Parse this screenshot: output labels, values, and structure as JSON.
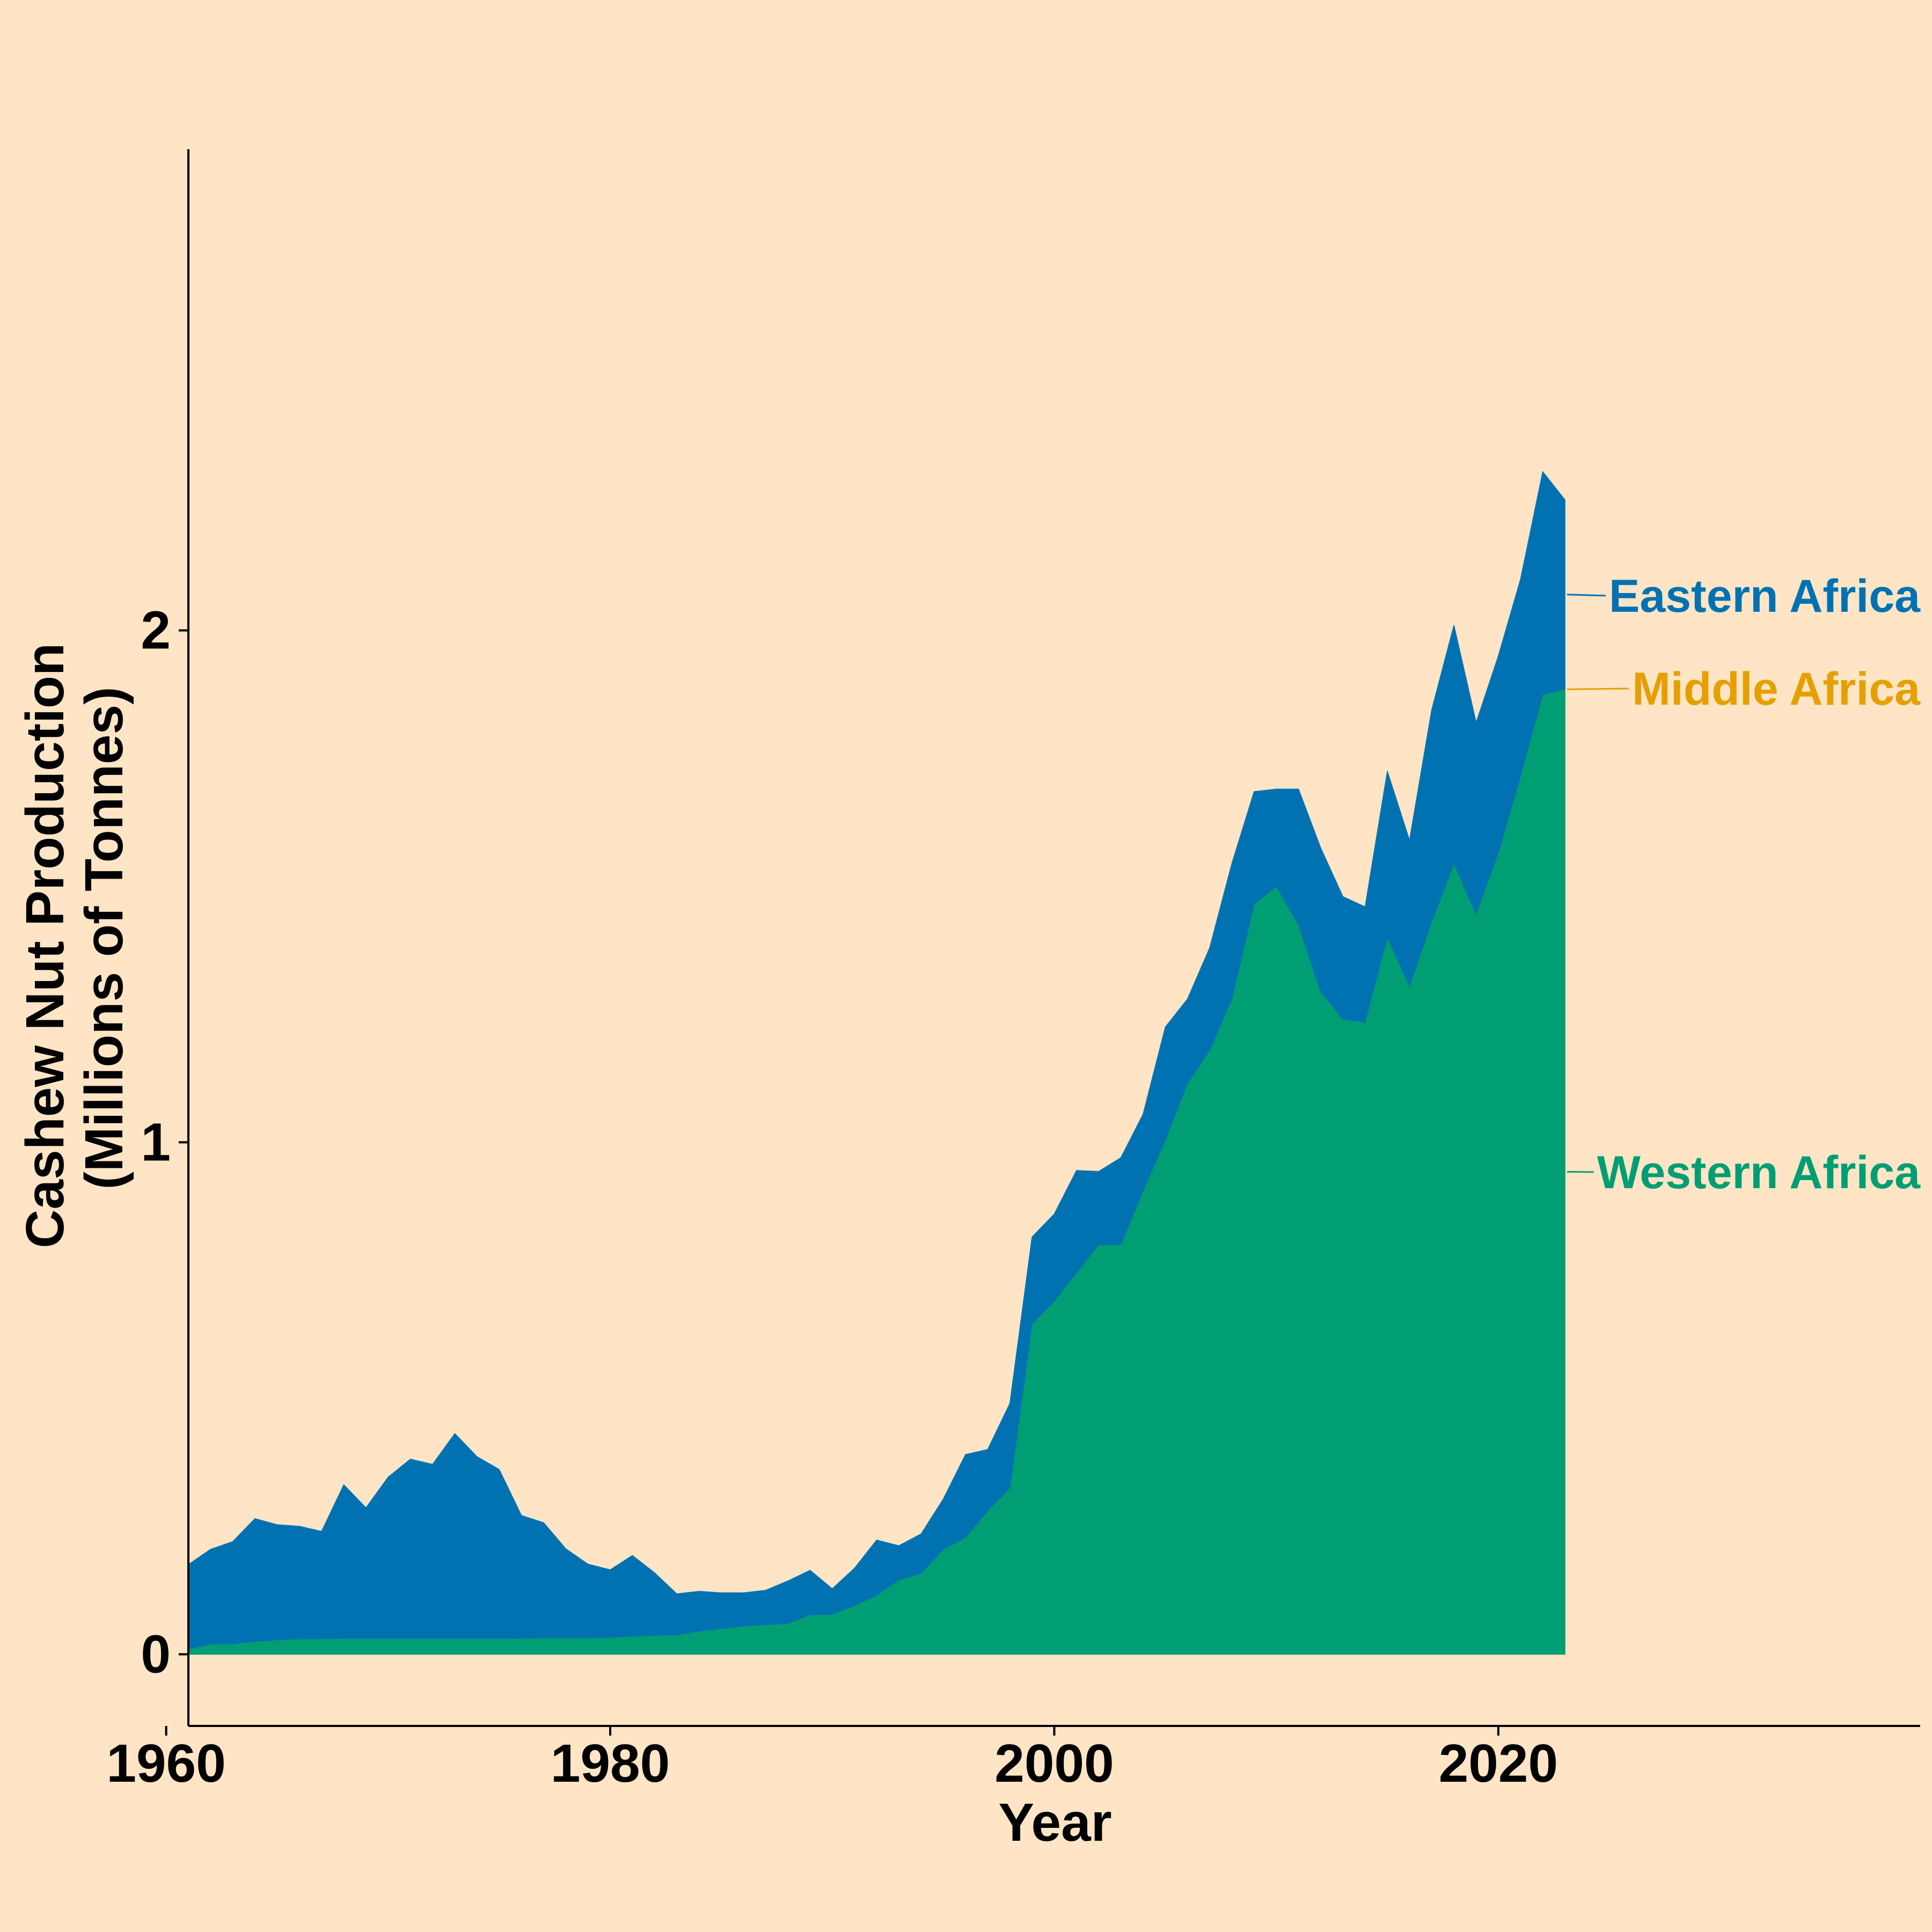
{
  "chart_data": {
    "type": "area",
    "stacked": true,
    "title": "",
    "xlabel": "Year",
    "ylabel_lines": [
      "Cashew Nut Production",
      "(Millions of Tonnes)"
    ],
    "xlim": [
      1961,
      2039
    ],
    "ylim": [
      -0.14,
      2.94
    ],
    "x_ticks": [
      {
        "value": 1960,
        "label": "1960"
      },
      {
        "value": 1980,
        "label": "1980"
      },
      {
        "value": 2000,
        "label": "2000"
      },
      {
        "value": 2020,
        "label": "2020"
      }
    ],
    "y_ticks": [
      {
        "value": 0,
        "label": "0"
      },
      {
        "value": 1,
        "label": "1"
      },
      {
        "value": 2,
        "label": "2"
      }
    ],
    "grid": false,
    "legend": "direct labels at right end of series",
    "x": [
      1961,
      1962,
      1963,
      1964,
      1965,
      1966,
      1967,
      1968,
      1969,
      1970,
      1971,
      1972,
      1973,
      1974,
      1975,
      1976,
      1977,
      1978,
      1979,
      1980,
      1981,
      1982,
      1983,
      1984,
      1985,
      1986,
      1987,
      1988,
      1989,
      1990,
      1991,
      1992,
      1993,
      1994,
      1995,
      1996,
      1997,
      1998,
      1999,
      2000,
      2001,
      2002,
      2003,
      2004,
      2005,
      2006,
      2007,
      2008,
      2009,
      2010,
      2011,
      2012,
      2013,
      2014,
      2015,
      2016,
      2017,
      2018,
      2019,
      2020,
      2021,
      2022,
      2023
    ],
    "series": [
      {
        "name": "Western Africa",
        "color": "#009E73",
        "values": [
          0.01,
          0.02,
          0.02,
          0.025,
          0.028,
          0.03,
          0.03,
          0.031,
          0.031,
          0.031,
          0.031,
          0.031,
          0.031,
          0.031,
          0.031,
          0.031,
          0.032,
          0.032,
          0.032,
          0.033,
          0.035,
          0.037,
          0.038,
          0.045,
          0.05,
          0.055,
          0.058,
          0.06,
          0.077,
          0.078,
          0.095,
          0.115,
          0.145,
          0.158,
          0.205,
          0.228,
          0.28,
          0.325,
          0.645,
          0.69,
          0.745,
          0.8,
          0.8,
          0.905,
          1.005,
          1.115,
          1.18,
          1.28,
          1.465,
          1.5,
          1.425,
          1.295,
          1.24,
          1.235,
          1.4,
          1.305,
          1.43,
          1.545,
          1.445,
          1.565,
          1.715,
          1.875,
          1.885
        ]
      },
      {
        "name": "Middle Africa",
        "color": "#E69F00",
        "values": [
          0,
          0,
          0,
          0,
          0,
          0,
          0,
          0,
          0,
          0,
          0,
          0,
          0,
          0,
          0,
          0,
          0,
          0,
          0,
          0,
          0,
          0,
          0,
          0,
          0,
          0,
          0,
          0,
          0,
          0,
          0,
          0,
          0,
          0,
          0,
          0,
          0,
          0,
          0,
          0,
          0,
          0,
          0,
          0,
          0,
          0,
          0,
          0,
          0,
          0,
          0,
          0,
          0,
          0,
          0,
          0,
          0,
          0,
          0,
          0,
          0,
          0,
          0
        ]
      },
      {
        "name": "Eastern Africa",
        "color": "#0072B2",
        "values": [
          0.165,
          0.185,
          0.2,
          0.24,
          0.225,
          0.22,
          0.21,
          0.3,
          0.255,
          0.315,
          0.35,
          0.34,
          0.4,
          0.355,
          0.33,
          0.24,
          0.225,
          0.174,
          0.144,
          0.132,
          0.158,
          0.122,
          0.08,
          0.078,
          0.07,
          0.065,
          0.067,
          0.083,
          0.087,
          0.05,
          0.073,
          0.108,
          0.067,
          0.077,
          0.098,
          0.162,
          0.12,
          0.165,
          0.17,
          0.17,
          0.2,
          0.143,
          0.17,
          0.15,
          0.22,
          0.165,
          0.2,
          0.265,
          0.22,
          0.19,
          0.265,
          0.28,
          0.24,
          0.225,
          0.325,
          0.285,
          0.415,
          0.465,
          0.375,
          0.385,
          0.385,
          0.435,
          0.37
        ]
      }
    ]
  }
}
